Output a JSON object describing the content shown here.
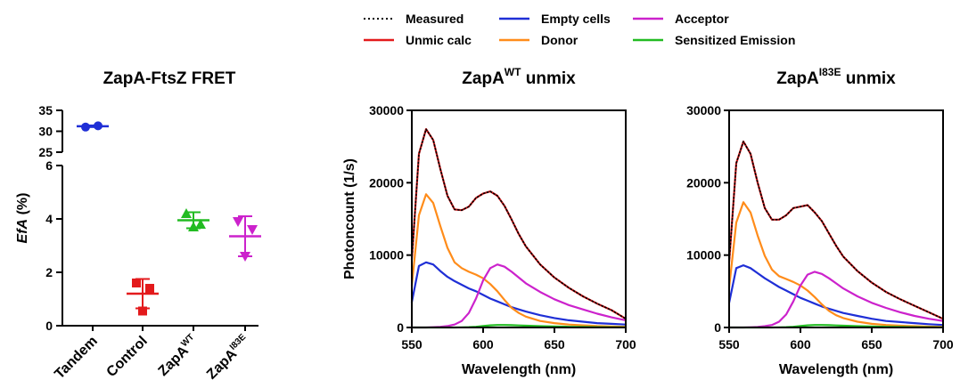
{
  "legend": {
    "items": [
      {
        "label": "Measured",
        "color": "#000000",
        "dotted": true
      },
      {
        "label": "Unmic calc",
        "color": "#e31a1c"
      },
      {
        "label": "Empty cells",
        "color": "#1f2fd6"
      },
      {
        "label": "Donor",
        "color": "#ff8c1a"
      },
      {
        "label": "Acceptor",
        "color": "#cc22cc"
      },
      {
        "label": "Sensitized Emission",
        "color": "#22bb22"
      }
    ]
  },
  "chart_data": [
    {
      "type": "scatter",
      "title": "ZapA-FtsZ FRET",
      "ylabel": "EfA (%)",
      "yaxis_broken": true,
      "y_upper_ticks": [
        25,
        30,
        35
      ],
      "y_lower_ticks": [
        0,
        2,
        4,
        6
      ],
      "categories": [
        {
          "label": "Tandem",
          "sup": "",
          "color": "#1f2fd6",
          "marker": "circle",
          "points": [
            31.0,
            31.3
          ],
          "mean": 31.2,
          "sd": 0.2
        },
        {
          "label": "Control",
          "sup": "",
          "color": "#e31a1c",
          "marker": "square",
          "points": [
            1.6,
            1.4,
            0.55
          ],
          "mean": 1.2,
          "sd": 0.55
        },
        {
          "label": "ZapA",
          "sup": "WT",
          "color": "#22bb22",
          "marker": "triangle-up",
          "points": [
            4.2,
            3.7,
            3.8
          ],
          "mean": 3.95,
          "sd": 0.3
        },
        {
          "label": "ZapA",
          "sup": "I83E",
          "color": "#cc22cc",
          "marker": "triangle-down",
          "points": [
            3.9,
            3.6,
            2.6
          ],
          "mean": 3.35,
          "sd": 0.75
        }
      ]
    },
    {
      "type": "line",
      "title": "ZapA",
      "title_sup": "WT",
      "title_suffix": " unmix",
      "xlabel": "Wavelength (nm)",
      "ylabel": "Photoncount (1/s)",
      "xlim": [
        550,
        700
      ],
      "ylim": [
        0,
        30000
      ],
      "xticks": [
        550,
        600,
        650,
        700
      ],
      "yticks": [
        0,
        10000,
        20000,
        30000
      ],
      "x": [
        550,
        555,
        560,
        565,
        570,
        575,
        580,
        585,
        590,
        595,
        600,
        605,
        610,
        615,
        620,
        625,
        630,
        640,
        650,
        660,
        670,
        680,
        690,
        700
      ],
      "series": [
        {
          "name": "Empty cells",
          "values": [
            3500,
            8500,
            9000,
            8700,
            7800,
            7000,
            6400,
            5900,
            5400,
            5000,
            4500,
            4000,
            3600,
            3200,
            2800,
            2500,
            2200,
            1700,
            1300,
            1000,
            800,
            600,
            500,
            400
          ]
        },
        {
          "name": "Donor",
          "values": [
            5800,
            15500,
            18400,
            17200,
            14000,
            11000,
            9000,
            8200,
            7700,
            7300,
            6800,
            6000,
            5000,
            3800,
            2700,
            2000,
            1500,
            900,
            600,
            400,
            300,
            200,
            150,
            100
          ]
        },
        {
          "name": "Acceptor",
          "values": [
            0,
            0,
            0,
            50,
            100,
            200,
            400,
            900,
            2000,
            4000,
            6500,
            8200,
            8700,
            8400,
            7700,
            6900,
            6100,
            4900,
            3900,
            3100,
            2500,
            1900,
            1400,
            1000
          ]
        },
        {
          "name": "Sensitized Emission",
          "values": [
            0,
            0,
            0,
            0,
            0,
            0,
            0,
            20,
            50,
            100,
            200,
            300,
            350,
            350,
            320,
            280,
            240,
            180,
            130,
            100,
            70,
            50,
            35,
            25
          ]
        },
        {
          "name": "Unmic calc",
          "values": [
            9400,
            24000,
            27400,
            25900,
            21900,
            18200,
            16300,
            16200,
            16700,
            17900,
            18500,
            18800,
            18200,
            16800,
            14900,
            12900,
            11200,
            8700,
            6900,
            5500,
            4300,
            3300,
            2400,
            1200
          ]
        },
        {
          "name": "Measured",
          "values": [
            9400,
            24000,
            27400,
            25900,
            21900,
            18200,
            16300,
            16200,
            16700,
            17900,
            18500,
            18800,
            18200,
            16800,
            14900,
            12900,
            11200,
            8700,
            6900,
            5500,
            4300,
            3300,
            2400,
            1200
          ]
        }
      ]
    },
    {
      "type": "line",
      "title": "ZapA",
      "title_sup": "I83E",
      "title_suffix": " unmix",
      "xlabel": "Wavelength (nm)",
      "ylabel": "",
      "xlim": [
        550,
        700
      ],
      "ylim": [
        0,
        30000
      ],
      "xticks": [
        550,
        600,
        650,
        700
      ],
      "yticks": [
        0,
        10000,
        20000,
        30000
      ],
      "x": [
        550,
        555,
        560,
        565,
        570,
        575,
        580,
        585,
        590,
        595,
        600,
        605,
        610,
        615,
        620,
        625,
        630,
        640,
        650,
        660,
        670,
        680,
        690,
        700
      ],
      "series": [
        {
          "name": "Empty cells",
          "values": [
            3400,
            8200,
            8600,
            8200,
            7500,
            6800,
            6200,
            5600,
            5100,
            4600,
            4100,
            3700,
            3300,
            2900,
            2600,
            2300,
            2000,
            1600,
            1200,
            900,
            750,
            600,
            450,
            350
          ]
        },
        {
          "name": "Donor",
          "values": [
            5500,
            14500,
            17300,
            15900,
            12700,
            9900,
            8000,
            7100,
            6700,
            6300,
            5800,
            5100,
            4200,
            3200,
            2300,
            1700,
            1300,
            800,
            500,
            350,
            250,
            180,
            120,
            80
          ]
        },
        {
          "name": "Acceptor",
          "values": [
            0,
            0,
            0,
            40,
            90,
            180,
            350,
            800,
            1800,
            3600,
            5800,
            7300,
            7700,
            7400,
            6800,
            6100,
            5400,
            4300,
            3400,
            2700,
            2100,
            1600,
            1200,
            900
          ]
        },
        {
          "name": "Sensitized Emission",
          "values": [
            0,
            0,
            0,
            0,
            0,
            0,
            0,
            20,
            50,
            100,
            200,
            300,
            350,
            350,
            320,
            280,
            240,
            180,
            130,
            100,
            70,
            50,
            35,
            25
          ]
        },
        {
          "name": "Unmic calc",
          "values": [
            9000,
            22700,
            25700,
            24000,
            20000,
            16500,
            14900,
            14900,
            15500,
            16500,
            16700,
            16900,
            15900,
            14700,
            13000,
            11300,
            9800,
            7800,
            6200,
            4900,
            3900,
            3000,
            2100,
            1200
          ]
        },
        {
          "name": "Measured",
          "values": [
            9000,
            22700,
            25700,
            24000,
            20000,
            16500,
            14900,
            14900,
            15500,
            16500,
            16700,
            16900,
            15900,
            14700,
            13000,
            11300,
            9800,
            7800,
            6200,
            4900,
            3900,
            3000,
            2100,
            1200
          ]
        }
      ]
    }
  ]
}
